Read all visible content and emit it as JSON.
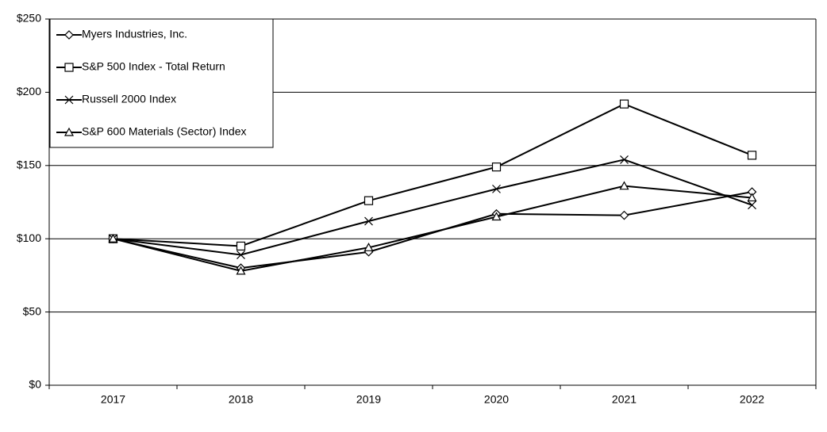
{
  "chart_data": {
    "type": "line",
    "categories": [
      "2017",
      "2018",
      "2019",
      "2020",
      "2021",
      "2022"
    ],
    "series": [
      {
        "name": "Myers Industries, Inc.",
        "color": "#000000",
        "marker": "diamond",
        "values": [
          100,
          80,
          91,
          117,
          116,
          132
        ]
      },
      {
        "name": "S&P 500 Index - Total Return",
        "color": "#000000",
        "marker": "square",
        "values": [
          100,
          95,
          126,
          149,
          192,
          157
        ]
      },
      {
        "name": "Russell 2000 Index",
        "color": "#000000",
        "marker": "x",
        "values": [
          100,
          89,
          112,
          134,
          154,
          123
        ]
      },
      {
        "name": "S&P 600 Materials (Sector) Index",
        "color": "#000000",
        "marker": "triangle",
        "values": [
          100,
          78,
          94,
          115,
          136,
          128
        ]
      }
    ],
    "ylim": [
      0,
      250
    ],
    "yticks": [
      {
        "value": 0,
        "label": "$0"
      },
      {
        "value": 50,
        "label": "$50"
      },
      {
        "value": 100,
        "label": "$100"
      },
      {
        "value": 150,
        "label": "$150"
      },
      {
        "value": 200,
        "label": "$200"
      },
      {
        "value": 250,
        "label": "$250"
      }
    ],
    "grid": true,
    "legend": "top-left"
  }
}
